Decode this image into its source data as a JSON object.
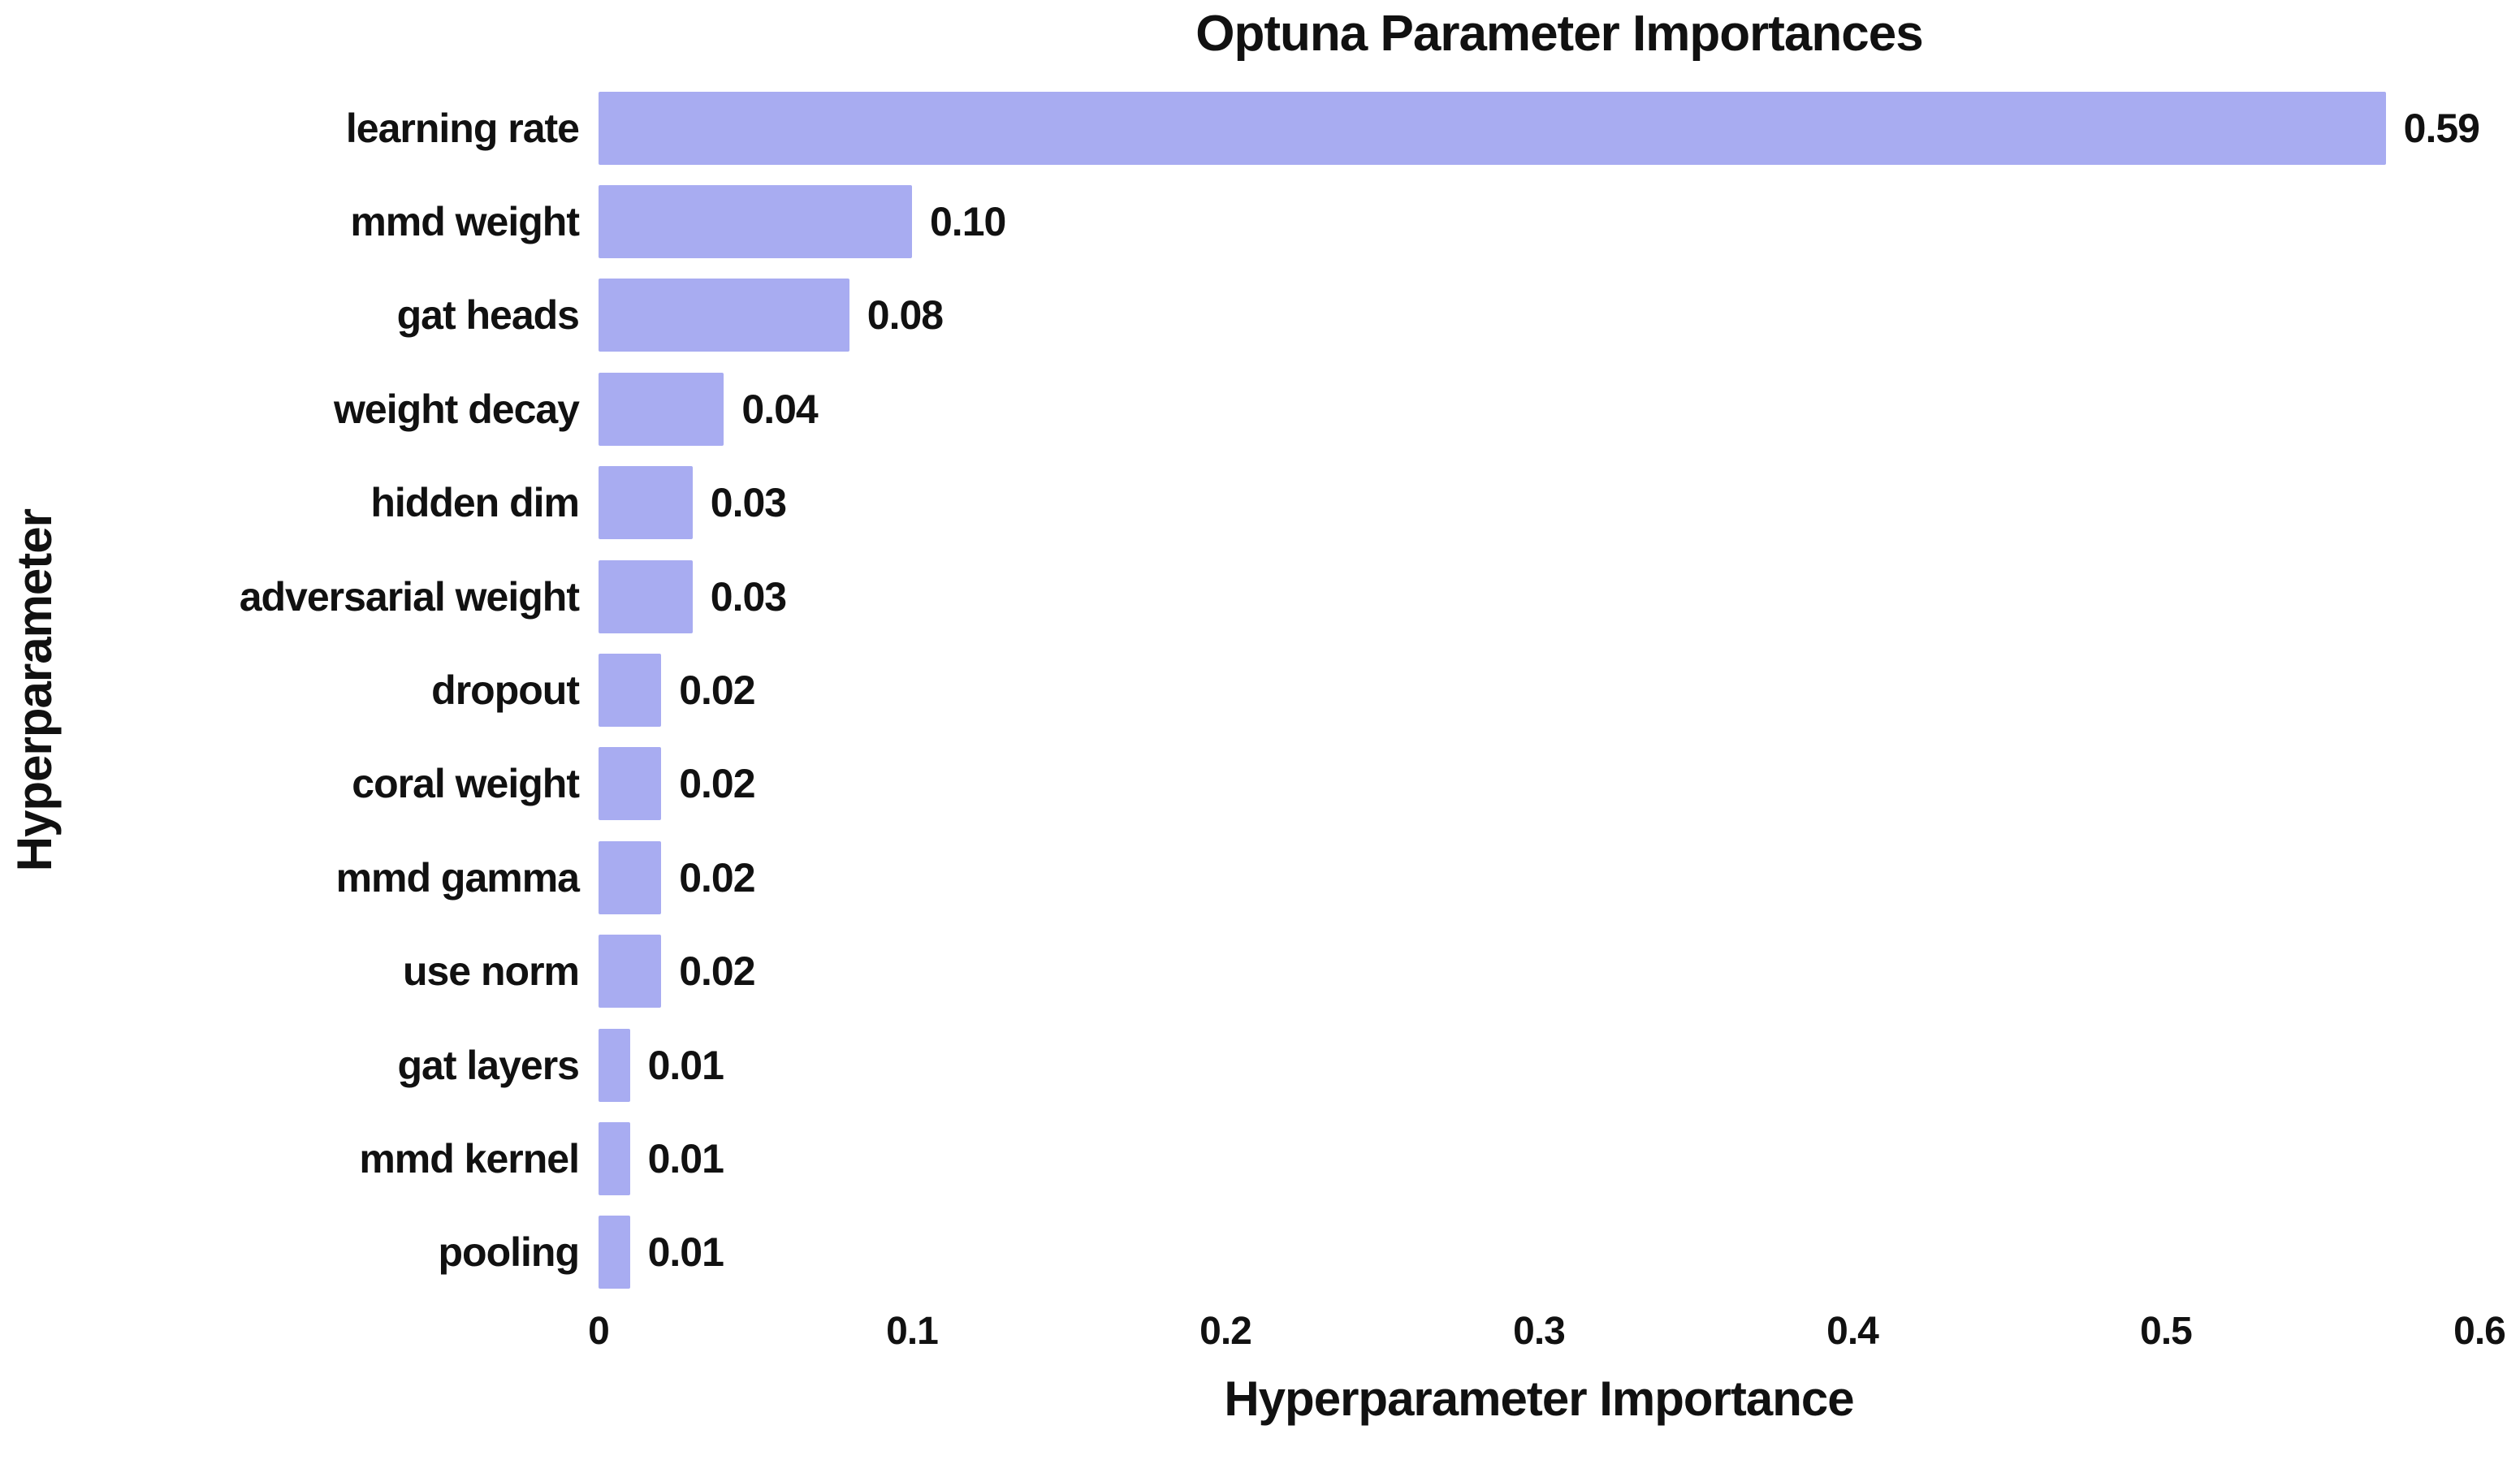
{
  "chart_data": {
    "type": "bar",
    "orientation": "horizontal",
    "title": "Optuna Parameter Importances",
    "xlabel": "Hyperparameter Importance",
    "ylabel": "Hyperparameter",
    "categories": [
      "learning rate",
      "mmd weight",
      "gat heads",
      "weight decay",
      "hidden dim",
      "adversarial weight",
      "dropout",
      "coral weight",
      "mmd gamma",
      "use norm",
      "gat layers",
      "mmd kernel",
      "pooling"
    ],
    "values": [
      0.59,
      0.1,
      0.08,
      0.04,
      0.03,
      0.03,
      0.02,
      0.02,
      0.02,
      0.02,
      0.01,
      0.01,
      0.01
    ],
    "value_labels": [
      "0.59",
      "0.10",
      "0.08",
      "0.04",
      "0.03",
      "0.03",
      "0.02",
      "0.02",
      "0.02",
      "0.02",
      "0.01",
      "0.01",
      "0.01"
    ],
    "x_ticks": [
      "0",
      "0.1",
      "0.2",
      "0.3",
      "0.4",
      "0.5",
      "0.6"
    ],
    "x_tick_values": [
      0,
      0.1,
      0.2,
      0.3,
      0.4,
      0.5,
      0.6
    ],
    "xlim": [
      0,
      0.6
    ],
    "grid": false,
    "legend": "none",
    "colors": {
      "bar_fill": "#A8ACF1",
      "text": "#111111",
      "background": "#FFFFFF"
    }
  }
}
